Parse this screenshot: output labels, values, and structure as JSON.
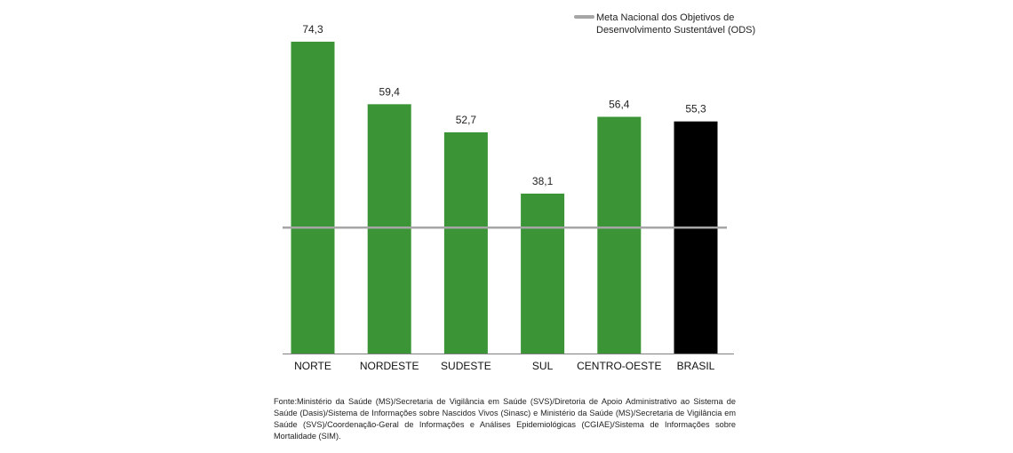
{
  "chart_data": {
    "type": "bar",
    "categories": [
      "NORTE",
      "NORDESTE",
      "SUDESTE",
      "SUL",
      "CENTRO-OESTE",
      "BRASIL"
    ],
    "values": [
      74.3,
      59.4,
      52.7,
      38.1,
      56.4,
      55.3
    ],
    "value_labels": [
      "74,3",
      "59,4",
      "52,7",
      "38,1",
      "56,4",
      "55,3"
    ],
    "bar_colors": [
      "#3b9536",
      "#3b9536",
      "#3b9536",
      "#3b9536",
      "#3b9536",
      "#000000"
    ],
    "reference_line": {
      "value": 30,
      "color": "#a6a6a6"
    },
    "ylim": [
      0,
      80
    ],
    "title": "",
    "xlabel": "",
    "ylabel": "",
    "legend": {
      "line1": "Meta Nacional dos Objetivos de",
      "line2": "Desenvolvimento Sustentável (ODS)",
      "position": "top-right",
      "color": "#a6a6a6"
    },
    "axis_color": "#808080"
  },
  "source": "Fonte:Ministério da Saúde (MS)/Secretaria de Vigilância em Saúde (SVS)/Diretoria de Apoio Administrativo ao Sistema de Saúde (Dasis)/Sistema de Informações sobre Nascidos Vivos (Sinasc) e Ministério da Saúde (MS)/Secretaria de Vigilância em Saúde (SVS)/Coordenação-Geral de Informações e Análises Epidemiológicas (CGIAE)/Sistema de Informações sobre Mortalidade (SIM)."
}
